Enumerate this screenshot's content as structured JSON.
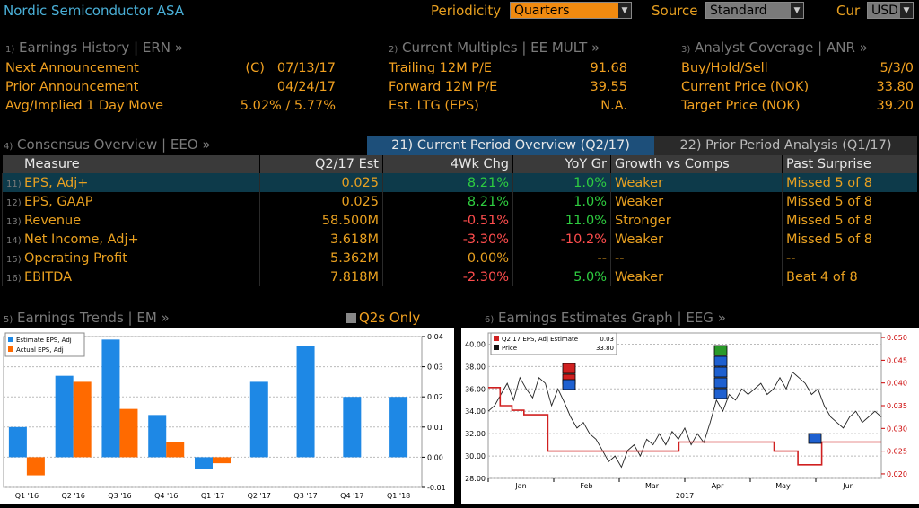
{
  "header": {
    "title": "Nordic Semiconductor ASA",
    "periodicity_label": "Periodicity",
    "periodicity_value": "Quarters",
    "source_label": "Source",
    "source_value": "Standard",
    "cur_label": "Cur",
    "cur_value": "USD"
  },
  "earnings_history": {
    "num": "1)",
    "title": "Earnings History | ERN »",
    "rows": [
      {
        "label": "Next Announcement",
        "prefix": "(C)",
        "value": "07/13/17"
      },
      {
        "label": "Prior Announcement",
        "prefix": "",
        "value": "04/24/17"
      },
      {
        "label": "Avg/Implied 1 Day Move",
        "prefix": "",
        "value": "5.02% / 5.77%"
      }
    ]
  },
  "current_multiples": {
    "num": "2)",
    "title": "Current Multiples | EE MULT »",
    "rows": [
      {
        "label": "Trailing 12M P/E",
        "value": "91.68"
      },
      {
        "label": "Forward 12M P/E",
        "value": "39.55"
      },
      {
        "label": "Est. LTG (EPS)",
        "value": "N.A."
      }
    ]
  },
  "analyst_coverage": {
    "num": "3)",
    "title": "Analyst Coverage | ANR »",
    "rows": [
      {
        "label": "Buy/Hold/Sell",
        "value": "5/3/0"
      },
      {
        "label": "Current Price (NOK)",
        "value": "33.80"
      },
      {
        "label": "Target Price (NOK)",
        "value": "39.20"
      }
    ]
  },
  "consensus": {
    "num": "4)",
    "title": "Consensus Overview | EEO »",
    "tab_current": "21) Current Period Overview (Q2/17)",
    "tab_prior": "22) Prior Period Analysis (Q1/17)",
    "columns": [
      "Measure",
      "Q2/17 Est",
      "4Wk Chg",
      "YoY Gr",
      "Growth vs Comps",
      "Past Surprise"
    ],
    "rows": [
      {
        "num": "11)",
        "measure": "EPS, Adj+",
        "est": "0.025",
        "chg": "8.21%",
        "chg_c": "green",
        "yoy": "1.0%",
        "yoy_c": "green",
        "comp": "Weaker",
        "surprise": "Missed 5 of 8"
      },
      {
        "num": "12)",
        "measure": "EPS, GAAP",
        "est": "0.025",
        "chg": "8.21%",
        "chg_c": "green",
        "yoy": "1.0%",
        "yoy_c": "green",
        "comp": "Weaker",
        "surprise": "Missed 5 of 8"
      },
      {
        "num": "13)",
        "measure": "Revenue",
        "est": "58.500M",
        "chg": "-0.51%",
        "chg_c": "red",
        "yoy": "11.0%",
        "yoy_c": "green",
        "comp": "Stronger",
        "surprise": "Missed 5 of 8"
      },
      {
        "num": "14)",
        "measure": "Net Income, Adj+",
        "est": "3.618M",
        "chg": "-3.30%",
        "chg_c": "red",
        "yoy": "-10.2%",
        "yoy_c": "red",
        "comp": "Weaker",
        "surprise": "Missed 5 of 8"
      },
      {
        "num": "15)",
        "measure": "Operating Profit",
        "est": "5.362M",
        "chg": "0.00%",
        "chg_c": "amber",
        "yoy": "--",
        "yoy_c": "amber",
        "comp": "--",
        "surprise": "--"
      },
      {
        "num": "16)",
        "measure": "EBITDA",
        "est": "7.818M",
        "chg": "-2.30%",
        "chg_c": "red",
        "yoy": "5.0%",
        "yoy_c": "green",
        "comp": "Weaker",
        "surprise": "Beat 4 of 8"
      }
    ]
  },
  "trends": {
    "num": "5)",
    "title": "Earnings Trends | EM »",
    "toggle": "Q2s Only"
  },
  "estimates_graph": {
    "num": "6)",
    "title": "Earnings Estimates Graph | EEG »"
  },
  "chart_data": [
    {
      "type": "bar",
      "categories": [
        "Q1 '16",
        "Q2 '16",
        "Q3 '16",
        "Q4 '16",
        "Q1 '17",
        "Q2 '17",
        "Q3 '17",
        "Q4 '17",
        "Q1 '18"
      ],
      "series": [
        {
          "name": "Estimate EPS, Adj",
          "color": "#1e88e5",
          "values": [
            0.01,
            0.027,
            0.039,
            0.014,
            -0.004,
            0.025,
            0.037,
            0.02,
            0.02
          ]
        },
        {
          "name": "Actual EPS, Adj",
          "color": "#ff6a00",
          "values": [
            -0.006,
            0.025,
            0.016,
            0.005,
            -0.002,
            null,
            null,
            null,
            null
          ]
        }
      ],
      "ylim": [
        -0.01,
        0.04
      ],
      "yticks": [
        "0.04",
        "0.03",
        "0.02",
        "0.01",
        "0.00",
        "-0.01"
      ],
      "legend": "top-left"
    },
    {
      "type": "line",
      "legend_title": "Q2 17 EPS, Adj Estimate",
      "legend_title_val": "0.03",
      "legend_price": "Price",
      "legend_price_val": "33.80",
      "left_ticks": [
        "40.00",
        "38.00",
        "36.00",
        "34.00",
        "32.00",
        "30.00",
        "28.00"
      ],
      "left_ylim": [
        28,
        41
      ],
      "right_ticks": [
        "0.050",
        "0.045",
        "0.040",
        "0.035",
        "0.030",
        "0.025",
        "0.020"
      ],
      "right_ylim": [
        0.019,
        0.051
      ],
      "x_labels": [
        "Jan",
        "Feb",
        "Mar",
        "Apr",
        "May",
        "Jun"
      ],
      "year_label": "2017",
      "price": [
        34.0,
        34.5,
        35.5,
        36.5,
        35.0,
        37.0,
        36.0,
        35.2,
        37.0,
        36.5,
        34.5,
        36.0,
        34.8,
        33.5,
        32.5,
        33.0,
        32.0,
        31.5,
        30.5,
        29.5,
        30.0,
        29.0,
        30.5,
        31.0,
        30.0,
        31.5,
        31.0,
        32.0,
        31.0,
        32.2,
        31.5,
        32.5,
        31.0,
        32.0,
        31.2,
        33.0,
        35.0,
        34.0,
        35.5,
        35.0,
        36.0,
        35.5,
        36.0,
        36.5,
        35.5,
        36.0,
        37.0,
        36.0,
        37.5,
        37.0,
        36.5,
        35.5,
        36.0,
        34.5,
        33.5,
        33.0,
        32.5,
        33.5,
        34.0,
        33.0,
        33.5,
        34.0,
        33.5
      ],
      "estimate": [
        0.039,
        0.035,
        0.034,
        0.033,
        0.033,
        0.025,
        0.025,
        0.025,
        0.025,
        0.025,
        0.025,
        0.025,
        0.025,
        0.025,
        0.025,
        0.025,
        0.027,
        0.027,
        0.027,
        0.027,
        0.027,
        0.027,
        0.027,
        0.027,
        0.025,
        0.025,
        0.022,
        0.022,
        0.027,
        0.027,
        0.027,
        0.027,
        0.027
      ]
    }
  ]
}
